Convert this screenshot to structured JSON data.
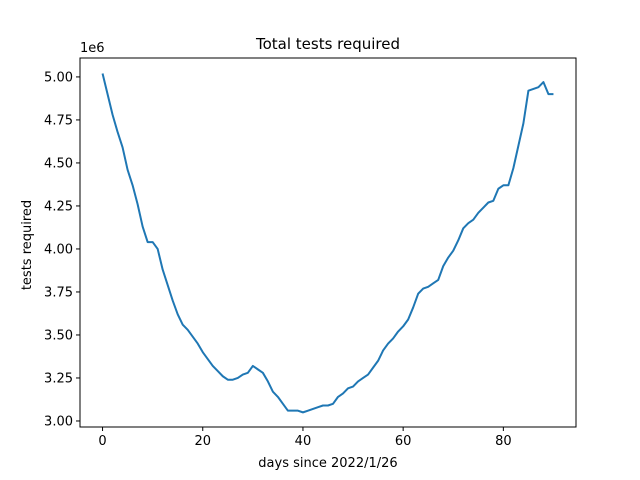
{
  "chart_data": {
    "type": "line",
    "title": "Total tests required",
    "xlabel": "days since 2022/1/26",
    "ylabel": "tests required",
    "offset_label": "1e6",
    "xlim": [
      -4.5,
      94.5
    ],
    "ylim": [
      2.965,
      5.11
    ],
    "xticks": [
      0,
      20,
      40,
      60,
      80
    ],
    "xtick_labels": [
      "0",
      "20",
      "40",
      "60",
      "80"
    ],
    "yticks": [
      3.0,
      3.25,
      3.5,
      3.75,
      4.0,
      4.25,
      4.5,
      4.75,
      5.0
    ],
    "ytick_labels": [
      "3.00",
      "3.25",
      "3.50",
      "3.75",
      "4.00",
      "4.25",
      "4.50",
      "4.75",
      "5.00"
    ],
    "grid": false,
    "line_color": "#1f77b4",
    "series": [
      {
        "x": [
          0,
          1,
          2,
          3,
          4,
          5,
          6,
          7,
          8,
          9,
          10,
          11,
          12,
          13,
          14,
          15,
          16,
          17,
          18,
          19,
          20,
          21,
          22,
          23,
          24,
          25,
          26,
          27,
          28,
          29,
          30,
          31,
          32,
          33,
          34,
          35,
          36,
          37,
          38,
          39,
          40,
          41,
          42,
          43,
          44,
          45,
          46,
          47,
          48,
          49,
          50,
          51,
          52,
          53,
          54,
          55,
          56,
          57,
          58,
          59,
          60,
          61,
          62,
          63,
          64,
          65,
          66,
          67,
          68,
          69,
          70,
          71,
          72,
          73,
          74,
          75,
          76,
          77,
          78,
          79,
          80,
          81,
          82,
          83,
          84,
          85,
          86,
          87,
          88,
          89,
          90
        ],
        "values": [
          5.02,
          4.9,
          4.78,
          4.68,
          4.59,
          4.46,
          4.37,
          4.26,
          4.13,
          4.04,
          4.04,
          4.0,
          3.88,
          3.79,
          3.7,
          3.62,
          3.56,
          3.53,
          3.49,
          3.45,
          3.4,
          3.36,
          3.32,
          3.29,
          3.26,
          3.24,
          3.24,
          3.25,
          3.27,
          3.28,
          3.32,
          3.3,
          3.28,
          3.23,
          3.17,
          3.14,
          3.1,
          3.06,
          3.06,
          3.06,
          3.05,
          3.06,
          3.07,
          3.08,
          3.09,
          3.09,
          3.1,
          3.14,
          3.16,
          3.19,
          3.2,
          3.23,
          3.25,
          3.27,
          3.31,
          3.35,
          3.41,
          3.45,
          3.48,
          3.52,
          3.55,
          3.59,
          3.66,
          3.74,
          3.77,
          3.78,
          3.8,
          3.82,
          3.9,
          3.95,
          3.99,
          4.05,
          4.12,
          4.15,
          4.17,
          4.21,
          4.24,
          4.27,
          4.28,
          4.35,
          4.37,
          4.37,
          4.47,
          4.6,
          4.73,
          4.92,
          4.93,
          4.94,
          4.97,
          4.9,
          4.9
        ]
      }
    ]
  }
}
